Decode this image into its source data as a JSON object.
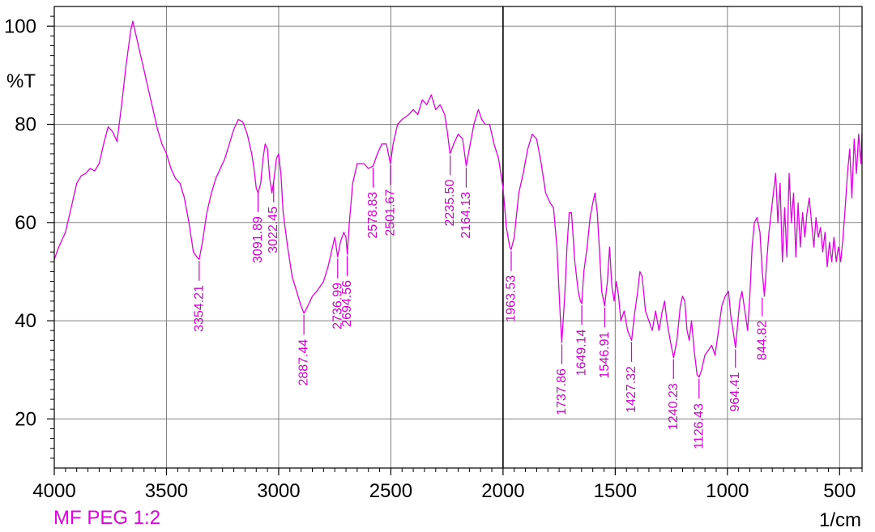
{
  "sample_name": "MF PEG 1:2",
  "colors": {
    "spectrum": "#e000e0",
    "label": "#d000d0",
    "grid": "#808080",
    "axis": "#000000"
  },
  "chart_data": {
    "type": "line",
    "title": "",
    "xlabel": "1/cm",
    "ylabel": "%T",
    "xlim": [
      4000,
      400
    ],
    "ylim": [
      10,
      104
    ],
    "x_reversed": true,
    "grid": true,
    "x_ticks": [
      4000,
      3500,
      3000,
      2500,
      2000,
      1500,
      1000,
      500
    ],
    "y_ticks": [
      20,
      40,
      60,
      80,
      100
    ],
    "vertical_marker": 2000,
    "series": [
      {
        "name": "MF PEG 1:2",
        "points": [
          [
            4000,
            52.5
          ],
          [
            3980,
            55
          ],
          [
            3950,
            58
          ],
          [
            3920,
            64
          ],
          [
            3900,
            68
          ],
          [
            3880,
            69.5
          ],
          [
            3860,
            70
          ],
          [
            3840,
            71
          ],
          [
            3820,
            70.5
          ],
          [
            3800,
            72
          ],
          [
            3780,
            76
          ],
          [
            3760,
            79.5
          ],
          [
            3740,
            78.5
          ],
          [
            3720,
            76.5
          ],
          [
            3700,
            84
          ],
          [
            3680,
            92
          ],
          [
            3660,
            99
          ],
          [
            3650,
            101
          ],
          [
            3640,
            99
          ],
          [
            3620,
            95
          ],
          [
            3600,
            91
          ],
          [
            3580,
            87
          ],
          [
            3560,
            83
          ],
          [
            3540,
            79
          ],
          [
            3520,
            76
          ],
          [
            3500,
            74
          ],
          [
            3480,
            71
          ],
          [
            3460,
            69
          ],
          [
            3440,
            68
          ],
          [
            3420,
            65
          ],
          [
            3400,
            60
          ],
          [
            3380,
            54
          ],
          [
            3365,
            53
          ],
          [
            3354,
            52.5
          ],
          [
            3340,
            56
          ],
          [
            3320,
            62
          ],
          [
            3300,
            66
          ],
          [
            3280,
            69
          ],
          [
            3260,
            71
          ],
          [
            3240,
            73
          ],
          [
            3220,
            76
          ],
          [
            3200,
            79
          ],
          [
            3180,
            81
          ],
          [
            3160,
            80.5
          ],
          [
            3140,
            78
          ],
          [
            3120,
            74
          ],
          [
            3110,
            71
          ],
          [
            3100,
            67
          ],
          [
            3092,
            66
          ],
          [
            3080,
            68
          ],
          [
            3070,
            73
          ],
          [
            3060,
            76
          ],
          [
            3050,
            75
          ],
          [
            3040,
            69
          ],
          [
            3030,
            66
          ],
          [
            3022,
            68.5
          ],
          [
            3010,
            73
          ],
          [
            3000,
            74
          ],
          [
            2990,
            70
          ],
          [
            2980,
            62
          ],
          [
            2960,
            55
          ],
          [
            2940,
            49
          ],
          [
            2920,
            46
          ],
          [
            2900,
            43
          ],
          [
            2887,
            41.5
          ],
          [
            2870,
            43
          ],
          [
            2850,
            45
          ],
          [
            2830,
            46
          ],
          [
            2800,
            48
          ],
          [
            2780,
            51
          ],
          [
            2760,
            55
          ],
          [
            2750,
            57
          ],
          [
            2737,
            53
          ],
          [
            2725,
            56
          ],
          [
            2710,
            58
          ],
          [
            2700,
            57
          ],
          [
            2694,
            53.5
          ],
          [
            2685,
            60
          ],
          [
            2670,
            68
          ],
          [
            2650,
            72
          ],
          [
            2620,
            72
          ],
          [
            2600,
            71
          ],
          [
            2579,
            71.5
          ],
          [
            2560,
            74
          ],
          [
            2540,
            76
          ],
          [
            2520,
            76
          ],
          [
            2502,
            72
          ],
          [
            2490,
            76
          ],
          [
            2470,
            80
          ],
          [
            2450,
            81
          ],
          [
            2420,
            82
          ],
          [
            2400,
            83
          ],
          [
            2380,
            82
          ],
          [
            2360,
            85
          ],
          [
            2340,
            84
          ],
          [
            2320,
            86
          ],
          [
            2300,
            83
          ],
          [
            2280,
            84
          ],
          [
            2260,
            82
          ],
          [
            2250,
            79
          ],
          [
            2236,
            74
          ],
          [
            2220,
            76
          ],
          [
            2200,
            78
          ],
          [
            2180,
            77
          ],
          [
            2164,
            71.5
          ],
          [
            2150,
            75
          ],
          [
            2130,
            80
          ],
          [
            2110,
            83
          ],
          [
            2095,
            81
          ],
          [
            2080,
            80
          ],
          [
            2060,
            80
          ],
          [
            2040,
            76
          ],
          [
            2020,
            73
          ],
          [
            2000,
            67
          ],
          [
            1985,
            59
          ],
          [
            1970,
            55
          ],
          [
            1964,
            54.5
          ],
          [
            1950,
            57
          ],
          [
            1930,
            66
          ],
          [
            1910,
            70
          ],
          [
            1890,
            75
          ],
          [
            1870,
            78
          ],
          [
            1850,
            77
          ],
          [
            1830,
            72
          ],
          [
            1810,
            66
          ],
          [
            1790,
            64
          ],
          [
            1775,
            63
          ],
          [
            1760,
            55
          ],
          [
            1745,
            41
          ],
          [
            1738,
            35.5
          ],
          [
            1725,
            45
          ],
          [
            1715,
            55
          ],
          [
            1705,
            62
          ],
          [
            1695,
            62
          ],
          [
            1680,
            52
          ],
          [
            1665,
            46
          ],
          [
            1655,
            44
          ],
          [
            1649,
            43.5
          ],
          [
            1640,
            50
          ],
          [
            1625,
            55
          ],
          [
            1612,
            61
          ],
          [
            1600,
            64
          ],
          [
            1590,
            66
          ],
          [
            1580,
            62
          ],
          [
            1570,
            54
          ],
          [
            1560,
            46
          ],
          [
            1547,
            43
          ],
          [
            1535,
            48
          ],
          [
            1525,
            55
          ],
          [
            1515,
            47
          ],
          [
            1505,
            44
          ],
          [
            1495,
            48
          ],
          [
            1485,
            45
          ],
          [
            1475,
            40
          ],
          [
            1460,
            42
          ],
          [
            1445,
            38
          ],
          [
            1427,
            36
          ],
          [
            1415,
            41
          ],
          [
            1400,
            46
          ],
          [
            1390,
            50
          ],
          [
            1380,
            49
          ],
          [
            1365,
            42
          ],
          [
            1350,
            40
          ],
          [
            1335,
            38
          ],
          [
            1320,
            42
          ],
          [
            1305,
            38
          ],
          [
            1290,
            42
          ],
          [
            1280,
            44
          ],
          [
            1270,
            40
          ],
          [
            1255,
            36
          ],
          [
            1240,
            32.5
          ],
          [
            1225,
            36
          ],
          [
            1210,
            43
          ],
          [
            1200,
            45
          ],
          [
            1190,
            44
          ],
          [
            1180,
            38
          ],
          [
            1170,
            36
          ],
          [
            1160,
            40
          ],
          [
            1148,
            34
          ],
          [
            1135,
            29
          ],
          [
            1126,
            28.5
          ],
          [
            1115,
            30
          ],
          [
            1100,
            33
          ],
          [
            1085,
            34
          ],
          [
            1070,
            35
          ],
          [
            1055,
            33
          ],
          [
            1040,
            38
          ],
          [
            1025,
            43
          ],
          [
            1010,
            45
          ],
          [
            995,
            46
          ],
          [
            985,
            41
          ],
          [
            975,
            38
          ],
          [
            964,
            34.5
          ],
          [
            955,
            39
          ],
          [
            945,
            44
          ],
          [
            935,
            46
          ],
          [
            922,
            42
          ],
          [
            910,
            38
          ],
          [
            900,
            45
          ],
          [
            890,
            55
          ],
          [
            880,
            60
          ],
          [
            868,
            61
          ],
          [
            855,
            58
          ],
          [
            845,
            50
          ],
          [
            835,
            45
          ],
          [
            825,
            52
          ],
          [
            815,
            58
          ],
          [
            805,
            62
          ],
          [
            795,
            66
          ],
          [
            785,
            70
          ],
          [
            775,
            60
          ],
          [
            765,
            68
          ],
          [
            755,
            52
          ],
          [
            745,
            63
          ],
          [
            735,
            53
          ],
          [
            725,
            70
          ],
          [
            715,
            60
          ],
          [
            705,
            66
          ],
          [
            695,
            53
          ],
          [
            685,
            64
          ],
          [
            675,
            55
          ],
          [
            665,
            62
          ],
          [
            655,
            57
          ],
          [
            645,
            62
          ],
          [
            635,
            65
          ],
          [
            625,
            60
          ],
          [
            615,
            55
          ],
          [
            605,
            61
          ],
          [
            595,
            57
          ],
          [
            585,
            59
          ],
          [
            575,
            54
          ],
          [
            565,
            58
          ],
          [
            555,
            51
          ],
          [
            545,
            56
          ],
          [
            535,
            52
          ],
          [
            525,
            57
          ],
          [
            515,
            52
          ],
          [
            505,
            55
          ],
          [
            495,
            52
          ],
          [
            485,
            57
          ],
          [
            475,
            63
          ],
          [
            465,
            70
          ],
          [
            455,
            75
          ],
          [
            445,
            65
          ],
          [
            435,
            77
          ],
          [
            425,
            70
          ],
          [
            415,
            78
          ],
          [
            405,
            72
          ],
          [
            400,
            78
          ]
        ]
      }
    ],
    "peak_labels": [
      {
        "wavenumber": 3354.21,
        "text": "3354.21",
        "tip": 52.5,
        "text_center": 42.5
      },
      {
        "wavenumber": 3091.89,
        "text": "3091.89",
        "tip": 66.5,
        "text_center": 56.5
      },
      {
        "wavenumber": 3022.45,
        "text": "3022.45",
        "tip": 68.5,
        "text_center": 58.5
      },
      {
        "wavenumber": 2887.44,
        "text": "2887.44",
        "tip": 41.5,
        "text_center": 31.5
      },
      {
        "wavenumber": 2736.99,
        "text": "2736.99",
        "tip": 53.0,
        "text_center": 43.0
      },
      {
        "wavenumber": 2694.56,
        "text": "2694.56",
        "tip": 53.5,
        "text_center": 43.5
      },
      {
        "wavenumber": 2578.83,
        "text": "2578.83",
        "tip": 71.5,
        "text_center": 61.5
      },
      {
        "wavenumber": 2501.67,
        "text": "2501.67",
        "tip": 72.0,
        "text_center": 62.0
      },
      {
        "wavenumber": 2235.5,
        "text": "2235.50",
        "tip": 74.0,
        "text_center": 64.0
      },
      {
        "wavenumber": 2164.13,
        "text": "2164.13",
        "tip": 71.5,
        "text_center": 61.5
      },
      {
        "wavenumber": 1963.53,
        "text": "1963.53",
        "tip": 54.5,
        "text_center": 44.5
      },
      {
        "wavenumber": 1737.86,
        "text": "1737.86",
        "tip": 35.5,
        "text_center": 25.5
      },
      {
        "wavenumber": 1649.14,
        "text": "1649.14",
        "tip": 43.5,
        "text_center": 33.5
      },
      {
        "wavenumber": 1546.91,
        "text": "1546.91",
        "tip": 43.0,
        "text_center": 33.0
      },
      {
        "wavenumber": 1427.32,
        "text": "1427.32",
        "tip": 36.0,
        "text_center": 26.0
      },
      {
        "wavenumber": 1240.23,
        "text": "1240.23",
        "tip": 32.5,
        "text_center": 22.5
      },
      {
        "wavenumber": 1126.43,
        "text": "1126.43",
        "tip": 28.5,
        "text_center": 18.5
      },
      {
        "wavenumber": 964.41,
        "text": "964.41",
        "tip": 34.5,
        "text_center": 25.5
      },
      {
        "wavenumber": 844.82,
        "text": "844.82",
        "tip": 45.0,
        "text_center": 36.0
      }
    ]
  }
}
